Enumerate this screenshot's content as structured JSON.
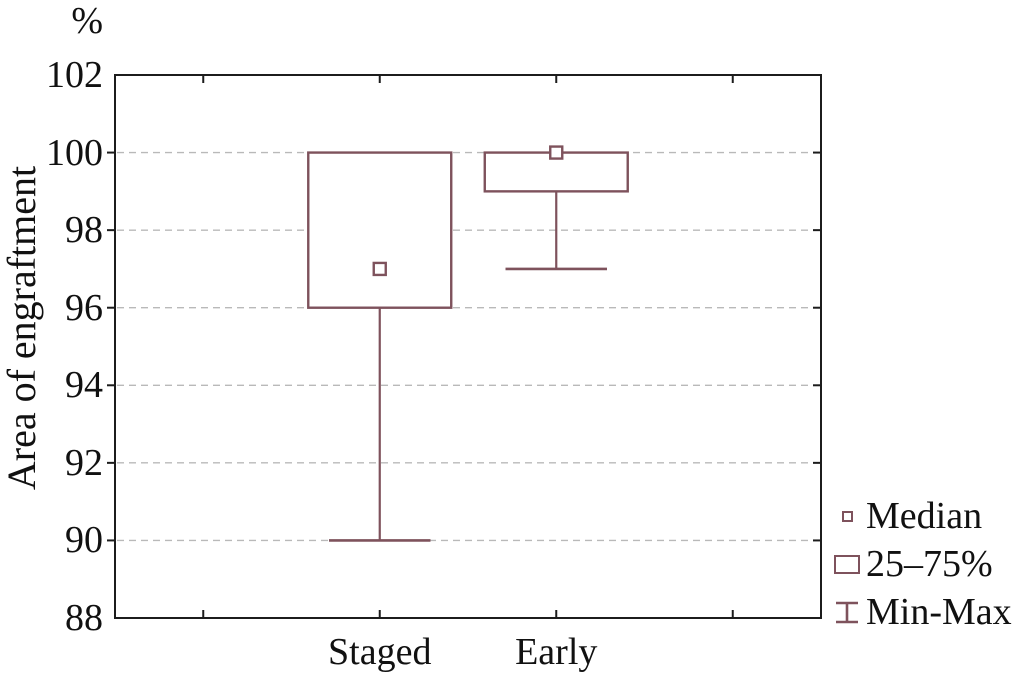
{
  "figure": {
    "unit_label": "%",
    "y_axis_title": "Area of engraftment"
  },
  "colors": {
    "series": "#7e525c",
    "axis": "#1c1c1c",
    "grid": "#b9b9b9",
    "text": "#111111",
    "background": "#ffffff"
  },
  "legend": {
    "items": [
      {
        "icon": "median-marker",
        "label": "Median"
      },
      {
        "icon": "quartile-box",
        "label": "25–75%"
      },
      {
        "icon": "min-max-whisker",
        "label": "Min-Max"
      }
    ]
  },
  "chart_data": {
    "type": "boxplot",
    "title": "",
    "ylabel": "Area of engraftment",
    "y_unit": "%",
    "xlabel": "",
    "categories": [
      "Staged",
      "Early"
    ],
    "series": [
      {
        "name": "Staged",
        "median": 97,
        "q25": 96,
        "q75": 100,
        "min": 90,
        "max": 100
      },
      {
        "name": "Early",
        "median": 100,
        "q25": 99,
        "q75": 100,
        "min": 97,
        "max": 100
      }
    ],
    "ylim": [
      88,
      102
    ],
    "yticks": [
      88,
      90,
      92,
      94,
      96,
      98,
      100,
      102
    ],
    "grid": "horizontal-dashed",
    "legend_position": "bottom-right"
  }
}
